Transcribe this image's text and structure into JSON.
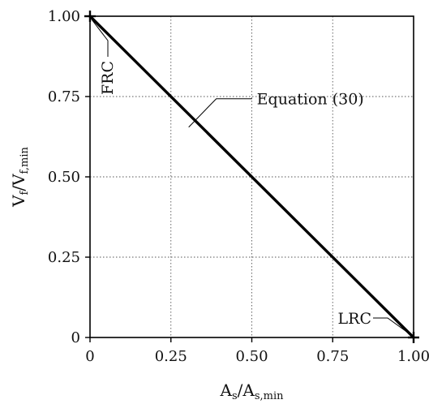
{
  "chart_data": {
    "type": "line",
    "xlabel": {
      "main": "A",
      "sub1": "s",
      "mid": "/A",
      "sub2": "s,min"
    },
    "ylabel": {
      "main": "V",
      "sub1": "f",
      "mid": "/V",
      "sub2": "f,min"
    },
    "xlim": [
      0,
      1
    ],
    "ylim": [
      0,
      1
    ],
    "grid": true,
    "x_ticks": [
      {
        "value": 0,
        "label": "0"
      },
      {
        "value": 0.25,
        "label": "0.25"
      },
      {
        "value": 0.5,
        "label": "0.50"
      },
      {
        "value": 0.75,
        "label": "0.75"
      },
      {
        "value": 1,
        "label": "1.00"
      }
    ],
    "y_ticks": [
      {
        "value": 0,
        "label": "0"
      },
      {
        "value": 0.25,
        "label": "0.25"
      },
      {
        "value": 0.5,
        "label": "0.50"
      },
      {
        "value": 0.75,
        "label": "0.75"
      },
      {
        "value": 1,
        "label": "1.00"
      }
    ],
    "series": [
      {
        "x": [
          0,
          1
        ],
        "y": [
          1,
          0
        ],
        "color": "#000000"
      }
    ],
    "markers": [
      {
        "x": 0,
        "y": 1,
        "symbol": "+"
      },
      {
        "x": 1,
        "y": 0,
        "symbol": "+"
      }
    ],
    "annotations": [
      {
        "id": "frc",
        "text": "FRC",
        "x": 0,
        "y": 1,
        "orientation": "vertical"
      },
      {
        "id": "eq30",
        "text": "Equation (30)",
        "x": 0.32,
        "y": 0.68,
        "orientation": "horizontal"
      },
      {
        "id": "lrc",
        "text": "LRC",
        "x": 1,
        "y": 0,
        "orientation": "horizontal"
      }
    ]
  }
}
